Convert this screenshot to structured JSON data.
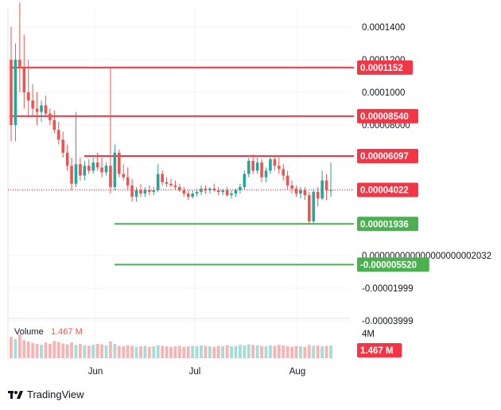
{
  "colors": {
    "up": "#26a69a",
    "down": "#ef5350",
    "resistance": "#f23645",
    "support": "#4caf50",
    "grid": "#f0f3fa",
    "text": "#131722",
    "current": "#f23645"
  },
  "brand": {
    "name": "TradingView",
    "icon": "tradingview-logo-icon"
  },
  "chart_data": {
    "type": "candlestick",
    "x_ticks": [
      "Jun",
      "Jul",
      "Aug"
    ],
    "price_ticks": [
      "0.0001400",
      "0.0001200",
      "0.0001000",
      "0.00008000",
      "0.000000000000000000002032",
      "-0.00001999",
      "-0.00003999"
    ],
    "price_tick_values": [
      0.00014,
      0.00012,
      0.0001,
      8e-05,
      0.0,
      -1.999e-05,
      -3.999e-05
    ],
    "levels": [
      {
        "label": "0.0001152",
        "value": 0.0001152,
        "kind": "resistance"
      },
      {
        "label": "0.00008540",
        "value": 8.54e-05,
        "kind": "resistance"
      },
      {
        "label": "0.00006097",
        "value": 6.097e-05,
        "kind": "resistance"
      },
      {
        "label": "0.00001936",
        "value": 1.936e-05,
        "kind": "support"
      },
      {
        "label": "-0.000005520",
        "value": -5.52e-06,
        "kind": "support"
      }
    ],
    "current_price": {
      "label": "0.00004022",
      "value": 4.022e-05
    },
    "volume": {
      "label": "Volume",
      "value": "1.467 M",
      "badge": "1.467 M",
      "axis_tick": "4M"
    },
    "candles": [
      [
        0.00012,
        0.00014,
        7e-05,
        8e-05
      ],
      [
        8e-05,
        0.00013,
        7e-05,
        0.00012
      ],
      [
        0.00012,
        0.000155,
        0.0001,
        0.000115
      ],
      [
        0.000115,
        0.000135,
        9e-05,
        0.0001
      ],
      [
        0.0001,
        0.00012,
        8.5e-05,
        9.5e-05
      ],
      [
        9.5e-05,
        0.000105,
        8.5e-05,
        9e-05
      ],
      [
        9e-05,
        0.0001,
        8e-05,
        8.8e-05
      ],
      [
        8.8e-05,
        9.5e-05,
        8.2e-05,
        9.2e-05
      ],
      [
        9.2e-05,
        9.8e-05,
        8.5e-05,
        8.7e-05
      ],
      [
        8.7e-05,
        9e-05,
        8e-05,
        8.3e-05
      ],
      [
        8.3e-05,
        8.9e-05,
        7.5e-05,
        7.7e-05
      ],
      [
        7.7e-05,
        8.2e-05,
        6.8e-05,
        7.1e-05
      ],
      [
        7.1e-05,
        7.6e-05,
        6e-05,
        6.3e-05
      ],
      [
        6.3e-05,
        6.8e-05,
        5.2e-05,
        5.5e-05
      ],
      [
        5.5e-05,
        6e-05,
        4e-05,
        4.4e-05
      ],
      [
        4.4e-05,
        8.8e-05,
        4.2e-05,
        5.6e-05
      ],
      [
        5.6e-05,
        6e-05,
        4.6e-05,
        4.9e-05
      ],
      [
        4.9e-05,
        5.8e-05,
        4.6e-05,
        5.5e-05
      ],
      [
        5.5e-05,
        5.9e-05,
        5e-05,
        5.2e-05
      ],
      [
        5.2e-05,
        6e-05,
        5e-05,
        5.7e-05
      ],
      [
        5.7e-05,
        6.3e-05,
        5.2e-05,
        5.4e-05
      ],
      [
        5.4e-05,
        6e-05,
        4.8e-05,
        5.1e-05
      ],
      [
        5.1e-05,
        5.7e-05,
        4.9e-05,
        5.5e-05
      ],
      [
        5.5e-05,
        0.000115,
        3.8e-05,
        4.2e-05
      ],
      [
        4.2e-05,
        6.8e-05,
        4e-05,
        6.3e-05
      ],
      [
        6.3e-05,
        6.5e-05,
        4.8e-05,
        5e-05
      ],
      [
        5e-05,
        5.6e-05,
        4.6e-05,
        4.8e-05
      ],
      [
        4.8e-05,
        5.4e-05,
        4e-05,
        4.3e-05
      ],
      [
        4.3e-05,
        4.7e-05,
        3.3e-05,
        3.6e-05
      ],
      [
        3.6e-05,
        4.2e-05,
        3.3e-05,
        4e-05
      ],
      [
        4e-05,
        4.4e-05,
        3.6e-05,
        3.8e-05
      ],
      [
        3.8e-05,
        4.2e-05,
        3.6e-05,
        4e-05
      ],
      [
        4e-05,
        4.3e-05,
        3.7e-05,
        3.9e-05
      ],
      [
        3.9e-05,
        4.2e-05,
        3.7e-05,
        4e-05
      ],
      [
        4e-05,
        5.6e-05,
        3.9e-05,
        5e-05
      ],
      [
        5e-05,
        5.2e-05,
        4.3e-05,
        4.5e-05
      ],
      [
        4.5e-05,
        4.8e-05,
        4.2e-05,
        4.4e-05
      ],
      [
        4.4e-05,
        4.7e-05,
        4.2e-05,
        4.3e-05
      ],
      [
        4.3e-05,
        4.6e-05,
        4e-05,
        4.2e-05
      ],
      [
        4.2e-05,
        4.4e-05,
        3.9e-05,
        4e-05
      ],
      [
        4e-05,
        4.2e-05,
        3.6e-05,
        3.8e-05
      ],
      [
        3.8e-05,
        4e-05,
        3.4e-05,
        3.6e-05
      ],
      [
        3.6e-05,
        4e-05,
        3.5e-05,
        3.8e-05
      ],
      [
        3.8e-05,
        4.1e-05,
        3.6e-05,
        3.9e-05
      ],
      [
        3.9e-05,
        4.3e-05,
        3.7e-05,
        4.1e-05
      ],
      [
        4.1e-05,
        4.3e-05,
        3.8e-05,
        4e-05
      ],
      [
        4e-05,
        4.2e-05,
        3.8e-05,
        4.1e-05
      ],
      [
        4.1e-05,
        4.4e-05,
        3.9e-05,
        4e-05
      ],
      [
        4e-05,
        4.2e-05,
        3.7e-05,
        3.9e-05
      ],
      [
        3.9e-05,
        4.1e-05,
        3.7e-05,
        4e-05
      ],
      [
        4e-05,
        4.2e-05,
        3.6e-05,
        3.7e-05
      ],
      [
        3.7e-05,
        4e-05,
        3.5e-05,
        3.8e-05
      ],
      [
        3.8e-05,
        4.1e-05,
        3.6e-05,
        4e-05
      ],
      [
        4e-05,
        4.4e-05,
        3.8e-05,
        4.2e-05
      ],
      [
        4.2e-05,
        5.2e-05,
        4e-05,
        5e-05
      ],
      [
        5e-05,
        6e-05,
        4.8e-05,
        5.8e-05
      ],
      [
        5.8e-05,
        6.2e-05,
        5e-05,
        5.2e-05
      ],
      [
        5.2e-05,
        6e-05,
        5e-05,
        5.7e-05
      ],
      [
        5.7e-05,
        5.9e-05,
        4.5e-05,
        4.8e-05
      ],
      [
        4.8e-05,
        5.4e-05,
        4.5e-05,
        5.2e-05
      ],
      [
        5.2e-05,
        6.1e-05,
        5e-05,
        5.9e-05
      ],
      [
        5.9e-05,
        6.1e-05,
        5.2e-05,
        5.5e-05
      ],
      [
        5.5e-05,
        6e-05,
        5e-05,
        5.3e-05
      ],
      [
        5.3e-05,
        5.6e-05,
        4.6e-05,
        4.9e-05
      ],
      [
        4.9e-05,
        5.2e-05,
        4e-05,
        4.3e-05
      ],
      [
        4.3e-05,
        4.6e-05,
        3.8e-05,
        4.1e-05
      ],
      [
        4.1e-05,
        4.3e-05,
        3.6e-05,
        3.8e-05
      ],
      [
        3.8e-05,
        4.2e-05,
        3.5e-05,
        4e-05
      ],
      [
        4e-05,
        4.2e-05,
        3.4e-05,
        3.7e-05
      ],
      [
        3.7e-05,
        3.9e-05,
        1.9e-05,
        2.1e-05
      ],
      [
        2.1e-05,
        4.1e-05,
        1.9e-05,
        3.9e-05
      ],
      [
        3.9e-05,
        4.2e-05,
        3e-05,
        3.5e-05
      ],
      [
        3.5e-05,
        5.2e-05,
        3.4e-05,
        4.6e-05
      ],
      [
        4.6e-05,
        5e-05,
        3.4e-05,
        4e-05
      ],
      [
        4e-05,
        5.7e-05,
        3.6e-05,
        4e-05
      ]
    ],
    "volumes": [
      0.45,
      0.4,
      0.5,
      0.38,
      0.35,
      0.32,
      0.3,
      0.28,
      0.33,
      0.3,
      0.36,
      0.34,
      0.31,
      0.29,
      0.33,
      0.28,
      0.3,
      0.27,
      0.26,
      0.28,
      0.3,
      0.29,
      0.27,
      0.35,
      0.3,
      0.26,
      0.25,
      0.27,
      0.26,
      0.24,
      0.25,
      0.26,
      0.24,
      0.25,
      0.27,
      0.26,
      0.25,
      0.24,
      0.25,
      0.26,
      0.24,
      0.25,
      0.26,
      0.25,
      0.27,
      0.26,
      0.25,
      0.24,
      0.26,
      0.25,
      0.27,
      0.25,
      0.26,
      0.28,
      0.27,
      0.29,
      0.28,
      0.27,
      0.26,
      0.25,
      0.27,
      0.26,
      0.28,
      0.27,
      0.25,
      0.24,
      0.26,
      0.25,
      0.24,
      0.28,
      0.26,
      0.27,
      0.25,
      0.26,
      0.27
    ]
  }
}
